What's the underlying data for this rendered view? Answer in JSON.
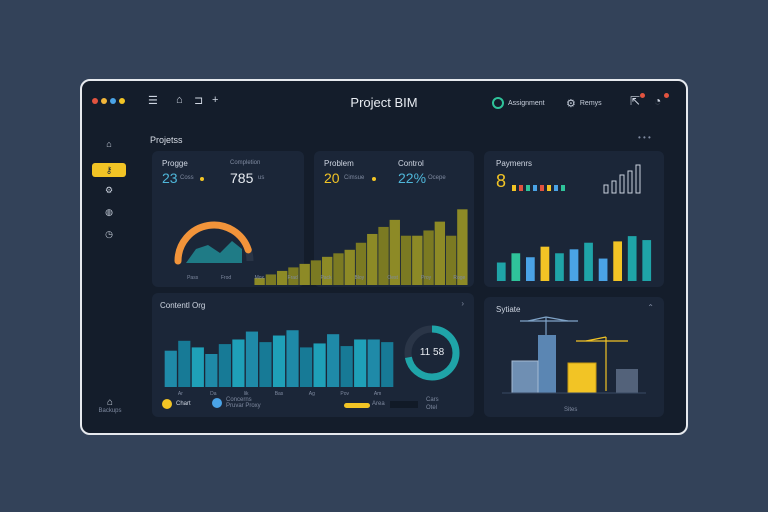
{
  "window": {
    "title": "Project BIM"
  },
  "titlebar": {
    "window_dots": [
      "#e2533f",
      "#f2b63a",
      "#4aa3e6",
      "#f2c425"
    ],
    "left_icons": [
      "menu-icon",
      "lock-icon",
      "panel-icon",
      "plus-icon"
    ],
    "user_pill": "Assignment",
    "settings_label": "Remys",
    "notification_badge_color": "#e2533f"
  },
  "sidebar": {
    "items": [
      {
        "icon": "home-icon"
      },
      {
        "icon": "key-icon",
        "active": true
      },
      {
        "icon": "gear-icon"
      },
      {
        "icon": "globe-icon"
      },
      {
        "icon": "clock-icon"
      }
    ],
    "footer_label": "Backups"
  },
  "main": {
    "section_title": "Projetss",
    "progress_card": {
      "label_a": "Progge",
      "label_b": "Completion",
      "value_a": "23",
      "unit_a": "Coss",
      "value_b": "785",
      "unit_b": "us",
      "axis_labels": [
        "Pass",
        "Frod",
        "Mox",
        "Frad",
        "Pack",
        "Bloy",
        "Oest",
        "Proy",
        "Roge"
      ]
    },
    "problem_card": {
      "label_a": "Problem",
      "label_b": "Control",
      "value_a": "20",
      "unit_a": "Cimsue",
      "value_b": "22%",
      "unit_b": "Ocepe"
    },
    "progress_card_bars": [
      0.08,
      0.12,
      0.16,
      0.2,
      0.24,
      0.28,
      0.32,
      0.36,
      0.4,
      0.48,
      0.58,
      0.66,
      0.74,
      0.56,
      0.56,
      0.62,
      0.72,
      0.56,
      0.86
    ],
    "gauge_level": 0.72,
    "progress_card_axis": [
      "Pass",
      "Frod",
      "Mox",
      "Frad",
      "Pack",
      "Bloy",
      "Oest",
      "Proy",
      "Roge"
    ],
    "payments_card": {
      "title": "Paymenrs",
      "value": "8",
      "bars": [
        0.28,
        0.42,
        0.36,
        0.52,
        0.42,
        0.48,
        0.58,
        0.34,
        0.6,
        0.68,
        0.62
      ]
    },
    "content_card": {
      "title": "Contentl Org",
      "donut_value": "11 58",
      "donut_level": 0.72,
      "axis_labels": [
        "Ar",
        "Da",
        "lik",
        "Bas",
        "Ag",
        "Pov",
        "Am"
      ],
      "legend": [
        {
          "label": "Chart"
        },
        {
          "label": "Concerns",
          "sub": "Pruvar Proxy"
        }
      ],
      "footer_items": [
        "Area",
        "Cars",
        "Otel"
      ]
    },
    "content_bars": [
      0.55,
      0.7,
      0.6,
      0.5,
      0.65,
      0.72,
      0.84,
      0.68,
      0.78,
      0.86,
      0.6,
      0.66,
      0.8,
      0.62,
      0.72,
      0.72,
      0.68
    ],
    "sites_card": {
      "title": "Sytiate",
      "footer": "Sites"
    }
  }
}
